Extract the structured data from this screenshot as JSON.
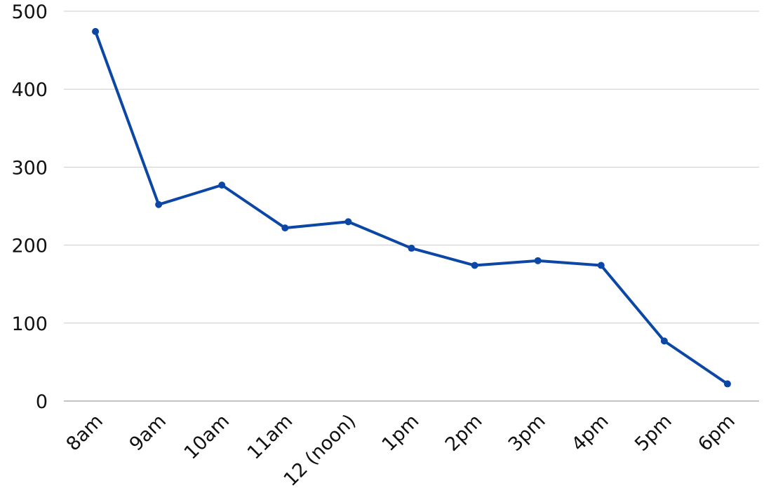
{
  "chart_data": {
    "type": "line",
    "categories": [
      "8am",
      "9am",
      "10am",
      "11am",
      "12 (noon)",
      "1pm",
      "2pm",
      "3pm",
      "4pm",
      "5pm",
      "6pm"
    ],
    "values": [
      474,
      252,
      277,
      222,
      230,
      196,
      174,
      180,
      174,
      77,
      22
    ],
    "color": "#0c47a6",
    "ylim": [
      0,
      500
    ],
    "yticks": [
      0,
      100,
      200,
      300,
      400,
      500
    ],
    "grid": true
  }
}
